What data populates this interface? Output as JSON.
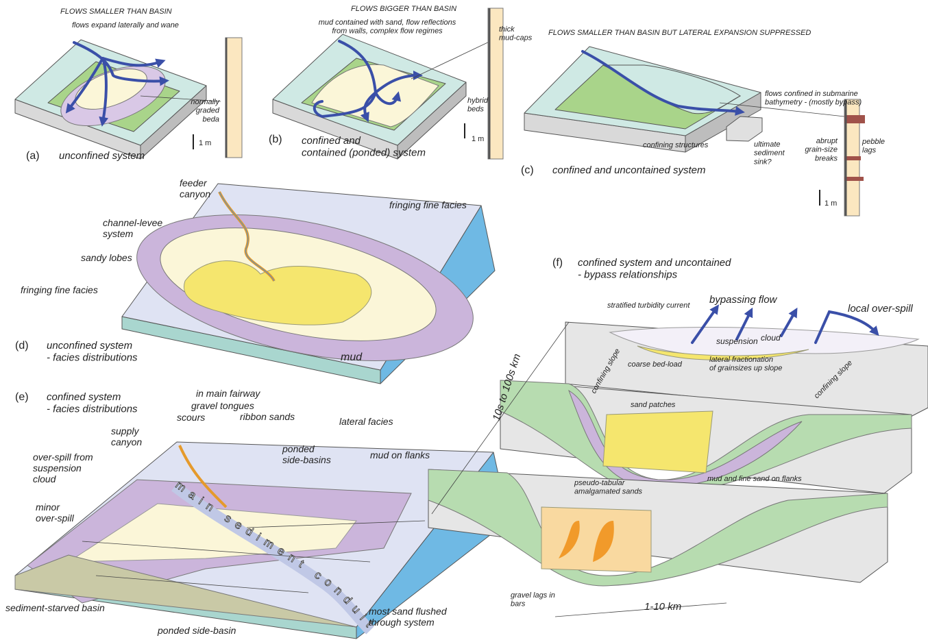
{
  "panels": {
    "a": {
      "letter": "(a)",
      "caption": "unconfined system",
      "heading": "FLOWS SMALLER THAN BASIN",
      "note": "flows expand laterally and wane",
      "column_note": [
        "normally",
        "graded",
        "beda"
      ],
      "scale": "1 m"
    },
    "b": {
      "letter": "(b)",
      "caption": [
        "confined and",
        "contained (ponded) system"
      ],
      "heading": "FLOWS BIGGER THAN BASIN",
      "note": [
        "mud contained with sand, flow reflections",
        "from walls, complex flow regimes"
      ],
      "column_notes": [
        [
          "thick",
          "mud-caps"
        ],
        [
          "hybrid",
          "beds"
        ]
      ],
      "scale": "1 m"
    },
    "c": {
      "letter": "(c)",
      "caption": "confined and uncontained system",
      "heading": "FLOWS SMALLER THAN BASIN BUT LATERAL EXPANSION SUPPRESSED",
      "note": [
        "flows confined in submarine",
        "bathymetry - (mostly bypass)"
      ],
      "labels": [
        [
          "confining structures"
        ],
        [
          "ultimate",
          "sediment",
          "sink?"
        ],
        [
          "abrupt",
          "grain-size",
          "breaks"
        ],
        [
          "pebble",
          "lags"
        ]
      ],
      "scale": "1 m"
    },
    "d": {
      "letter": "(d)",
      "caption": [
        "unconfined system",
        "- facies distributions"
      ],
      "labels": [
        [
          "feeder",
          "canyon"
        ],
        [
          "fringing fine facies"
        ],
        [
          "channel-levee",
          "system"
        ],
        [
          "sandy lobes"
        ],
        [
          "fringing fine facies"
        ],
        [
          "mud"
        ]
      ]
    },
    "e": {
      "letter": "(e)",
      "caption": [
        "confined system",
        "- facies distributions"
      ],
      "labels": [
        [
          "in main fairway"
        ],
        [
          "gravel tongues"
        ],
        [
          "scours"
        ],
        [
          "ribbon sands"
        ],
        [
          "lateral facies"
        ],
        [
          "supply",
          "canyon"
        ],
        [
          "ponded",
          "side-basins"
        ],
        [
          "mud on flanks"
        ],
        [
          "over-spill from",
          "suspension",
          "cloud"
        ],
        [
          "minor",
          "over-spill"
        ],
        [
          "sediment-starved basin"
        ],
        [
          "ponded side-basin"
        ],
        [
          "most sand flushed",
          "through system"
        ]
      ],
      "conduit": "main sediment conduit"
    },
    "f": {
      "letter": "(f)",
      "caption": [
        "confined system and uncontained",
        "- bypass relationships"
      ],
      "labels": [
        [
          "stratified turbidity current"
        ],
        [
          "bypassing flow"
        ],
        [
          "local over-spill"
        ],
        [
          "suspension"
        ],
        [
          "cloud"
        ],
        [
          "confining slope"
        ],
        [
          "coarse bed-load"
        ],
        [
          "lateral fractionation",
          "of grainsizes up slope"
        ],
        [
          "confining slope"
        ],
        [
          "sand patches"
        ],
        [
          "mud and fine sand on flanks"
        ],
        [
          "pseudo-tabular",
          "amalgamated sands"
        ],
        [
          "gravel lags in",
          "bars"
        ]
      ],
      "scales": [
        "10s to 100s km",
        "1-10 km"
      ]
    }
  }
}
